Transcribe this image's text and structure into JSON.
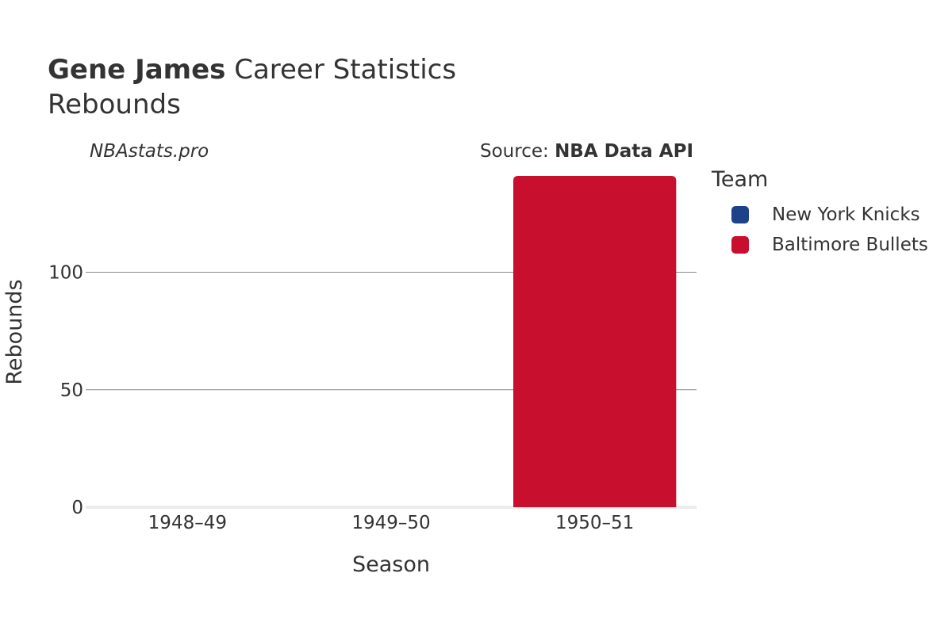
{
  "header": {
    "player": "Gene James",
    "title_rest": " Career Statistics",
    "subtitle": "Rebounds",
    "brand": "NBAstats.pro",
    "source_prefix": "Source: ",
    "source_name": "NBA Data API"
  },
  "legend": {
    "title": "Team",
    "items": [
      {
        "label": "New York Knicks",
        "color": "#1d428a"
      },
      {
        "label": "Baltimore Bullets",
        "color": "#c8102e"
      }
    ]
  },
  "chart_data": {
    "type": "bar",
    "title": "Gene James Career Statistics",
    "subtitle": "Rebounds",
    "xlabel": "Season",
    "ylabel": "Rebounds",
    "categories": [
      "1948–49",
      "1949–50",
      "1950–51"
    ],
    "series": [
      {
        "name": "Baltimore Bullets",
        "color": "#c8102e",
        "values": [
          null,
          null,
          141
        ]
      }
    ],
    "ylim": [
      0,
      141
    ],
    "yticks": [
      0,
      50,
      100
    ],
    "grid": true,
    "legend_position": "right"
  }
}
